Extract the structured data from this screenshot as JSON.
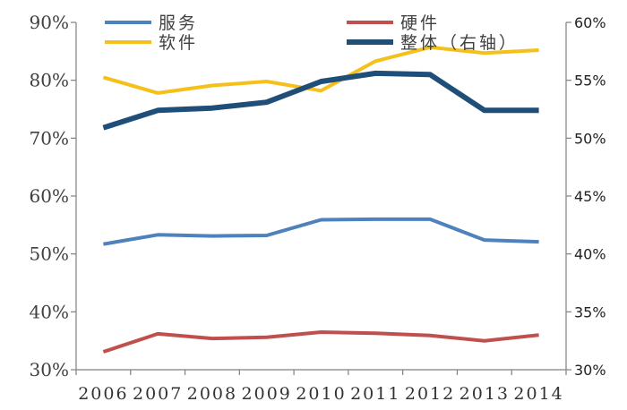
{
  "chart_data": {
    "type": "line",
    "categories": [
      "2006",
      "2007",
      "2008",
      "2009",
      "2010",
      "2011",
      "2012",
      "2013",
      "2014"
    ],
    "y_left": {
      "range": [
        30,
        90
      ],
      "ticks": [
        30,
        40,
        50,
        60,
        70,
        80,
        90
      ],
      "tick_labels": [
        "30%",
        "40%",
        "50%",
        "60%",
        "70%",
        "80%",
        "90%"
      ]
    },
    "y_right": {
      "range": [
        30,
        60
      ],
      "ticks": [
        30,
        35,
        40,
        45,
        50,
        55,
        60
      ],
      "tick_labels": [
        "30%",
        "35%",
        "40%",
        "45%",
        "50%",
        "55%",
        "60%"
      ]
    },
    "series": [
      {
        "name": "服务",
        "axis": "left",
        "color": "#4F81BD",
        "values": [
          51.7,
          53.3,
          53.1,
          53.2,
          55.9,
          56.0,
          56.0,
          52.4,
          52.1
        ]
      },
      {
        "name": "硬件",
        "axis": "left",
        "color": "#C0504D",
        "values": [
          33.1,
          36.2,
          35.4,
          35.6,
          36.5,
          36.3,
          35.9,
          35.0,
          36.0
        ]
      },
      {
        "name": "软件",
        "axis": "left",
        "color": "#F5C01A",
        "values": [
          80.5,
          77.8,
          79.1,
          79.8,
          78.2,
          83.3,
          85.7,
          84.7,
          85.2
        ]
      },
      {
        "name": "整体（右轴）",
        "axis": "right",
        "color": "#1F4E79",
        "values": [
          50.9,
          52.4,
          52.6,
          53.1,
          54.9,
          55.6,
          55.5,
          52.4,
          52.4
        ]
      }
    ],
    "legend": {
      "placement": "top",
      "entries": [
        "服务",
        "硬件",
        "软件",
        "整体（右轴）"
      ]
    },
    "grid": false
  }
}
